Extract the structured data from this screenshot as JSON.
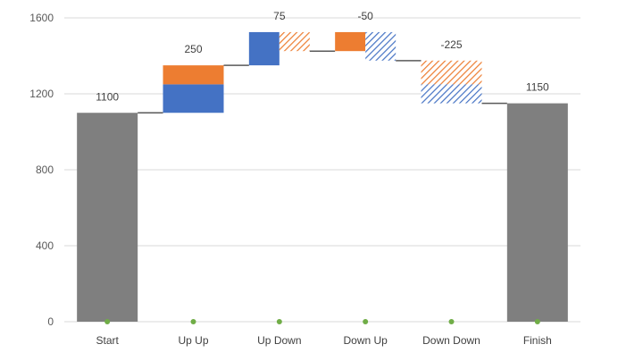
{
  "chart_data": {
    "type": "bar",
    "subtype": "waterfall",
    "title": "",
    "xlabel": "",
    "ylabel": "",
    "ylim": [
      0,
      1600
    ],
    "yticks": [
      0,
      400,
      800,
      1200,
      1600
    ],
    "grid": true,
    "legend": "none",
    "categories": [
      "Start",
      "Up Up",
      "Up Down",
      "Down Up",
      "Down Down",
      "Finish"
    ],
    "labels": [
      "1100",
      "250",
      "75",
      "-50",
      "-225",
      "1150"
    ],
    "steps": [
      {
        "category": "Start",
        "kind": "total",
        "value": 1100
      },
      {
        "category": "Up Up",
        "kind": "delta",
        "change": 250,
        "segments": [
          {
            "from": 1100,
            "to": 1250,
            "color": "blue",
            "pattern": "solid"
          },
          {
            "from": 1250,
            "to": 1350,
            "color": "orange",
            "pattern": "solid"
          }
        ],
        "level_after": 1350
      },
      {
        "category": "Up Down",
        "kind": "delta",
        "change": 75,
        "segments": [
          {
            "from": 1350,
            "to": 1525,
            "color": "blue",
            "pattern": "solid",
            "side": "left"
          },
          {
            "from": 1425,
            "to": 1525,
            "color": "orange",
            "pattern": "hatched",
            "side": "right"
          }
        ],
        "level_after": 1425
      },
      {
        "category": "Down Up",
        "kind": "delta",
        "change": -50,
        "segments": [
          {
            "from": 1425,
            "to": 1525,
            "color": "orange",
            "pattern": "solid",
            "side": "left"
          },
          {
            "from": 1375,
            "to": 1525,
            "color": "blue",
            "pattern": "hatched",
            "side": "right"
          }
        ],
        "level_after": 1375
      },
      {
        "category": "Down Down",
        "kind": "delta",
        "change": -225,
        "segments": [
          {
            "from": 1250,
            "to": 1375,
            "color": "orange",
            "pattern": "hatched"
          },
          {
            "from": 1150,
            "to": 1250,
            "color": "blue",
            "pattern": "hatched"
          }
        ],
        "level_after": 1150
      },
      {
        "category": "Finish",
        "kind": "total",
        "value": 1150
      }
    ],
    "colors": {
      "total": "#7f7f7f",
      "blue": "#4472c4",
      "orange": "#ed7d31",
      "connector": "#595959",
      "grid": "#d9d9d9",
      "marker": "#70ad47"
    }
  }
}
